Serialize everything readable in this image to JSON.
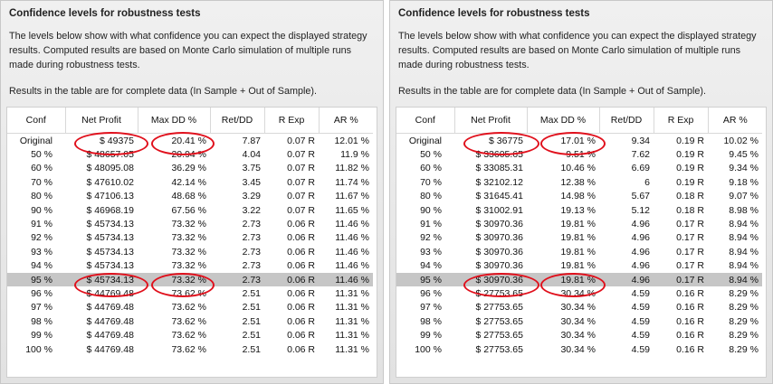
{
  "panels": [
    {
      "title": "Confidence levels for robustness tests",
      "description": "The levels below show with what confidence you can expect the displayed strategy results. Computed results are based on Monte Carlo simulation of multiple runs made during robustness tests.",
      "note": "Results in the table are for complete data (In Sample + Out of Sample).",
      "columns": [
        "Conf",
        "Net Profit",
        "Max DD %",
        "Ret/DD",
        "R Exp",
        "AR %"
      ],
      "highlight_row": "95 %",
      "rows": [
        [
          "Original",
          "$ 49375",
          "20.41 %",
          "7.87",
          "0.07 R",
          "12.01 %"
        ],
        [
          "50 %",
          "$ 48657.05",
          "20.94 %",
          "4.04",
          "0.07 R",
          "11.9 %"
        ],
        [
          "60 %",
          "$ 48095.08",
          "36.29 %",
          "3.75",
          "0.07 R",
          "11.82 %"
        ],
        [
          "70 %",
          "$ 47610.02",
          "42.14 %",
          "3.45",
          "0.07 R",
          "11.74 %"
        ],
        [
          "80 %",
          "$ 47106.13",
          "48.68 %",
          "3.29",
          "0.07 R",
          "11.67 %"
        ],
        [
          "90 %",
          "$ 46968.19",
          "67.56 %",
          "3.22",
          "0.07 R",
          "11.65 %"
        ],
        [
          "91 %",
          "$ 45734.13",
          "73.32 %",
          "2.73",
          "0.06 R",
          "11.46 %"
        ],
        [
          "92 %",
          "$ 45734.13",
          "73.32 %",
          "2.73",
          "0.06 R",
          "11.46 %"
        ],
        [
          "93 %",
          "$ 45734.13",
          "73.32 %",
          "2.73",
          "0.06 R",
          "11.46 %"
        ],
        [
          "94 %",
          "$ 45734.13",
          "73.32 %",
          "2.73",
          "0.06 R",
          "11.46 %"
        ],
        [
          "95 %",
          "$ 45734.13",
          "73.32 %",
          "2.73",
          "0.06 R",
          "11.46 %"
        ],
        [
          "96 %",
          "$ 44769.48",
          "73.62 %",
          "2.51",
          "0.06 R",
          "11.31 %"
        ],
        [
          "97 %",
          "$ 44769.48",
          "73.62 %",
          "2.51",
          "0.06 R",
          "11.31 %"
        ],
        [
          "98 %",
          "$ 44769.48",
          "73.62 %",
          "2.51",
          "0.06 R",
          "11.31 %"
        ],
        [
          "99 %",
          "$ 44769.48",
          "73.62 %",
          "2.51",
          "0.06 R",
          "11.31 %"
        ],
        [
          "100 %",
          "$ 44769.48",
          "73.62 %",
          "2.51",
          "0.06 R",
          "11.31 %"
        ]
      ]
    },
    {
      "title": "Confidence levels for robustness tests",
      "description": "The levels below show with what confidence you can expect the displayed strategy results. Computed results are based on Monte Carlo simulation of multiple runs made during robustness tests.",
      "note": "Results in the table are for complete data (In Sample + Out of Sample).",
      "columns": [
        "Conf",
        "Net Profit",
        "Max DD %",
        "Ret/DD",
        "R Exp",
        "AR %"
      ],
      "highlight_row": "95 %",
      "rows": [
        [
          "Original",
          "$ 36775",
          "17.01 %",
          "9.34",
          "0.19 R",
          "10.02 %"
        ],
        [
          "50 %",
          "$ 33605.65",
          "9.51 %",
          "7.62",
          "0.19 R",
          "9.45 %"
        ],
        [
          "60 %",
          "$ 33085.31",
          "10.46 %",
          "6.69",
          "0.19 R",
          "9.34 %"
        ],
        [
          "70 %",
          "$ 32102.12",
          "12.38 %",
          "6",
          "0.19 R",
          "9.18 %"
        ],
        [
          "80 %",
          "$ 31645.41",
          "14.98 %",
          "5.67",
          "0.18 R",
          "9.07 %"
        ],
        [
          "90 %",
          "$ 31002.91",
          "19.13 %",
          "5.12",
          "0.18 R",
          "8.98 %"
        ],
        [
          "91 %",
          "$ 30970.36",
          "19.81 %",
          "4.96",
          "0.17 R",
          "8.94 %"
        ],
        [
          "92 %",
          "$ 30970.36",
          "19.81 %",
          "4.96",
          "0.17 R",
          "8.94 %"
        ],
        [
          "93 %",
          "$ 30970.36",
          "19.81 %",
          "4.96",
          "0.17 R",
          "8.94 %"
        ],
        [
          "94 %",
          "$ 30970.36",
          "19.81 %",
          "4.96",
          "0.17 R",
          "8.94 %"
        ],
        [
          "95 %",
          "$ 30970.36",
          "19.81 %",
          "4.96",
          "0.17 R",
          "8.94 %"
        ],
        [
          "96 %",
          "$ 27753.65",
          "30.34 %",
          "4.59",
          "0.16 R",
          "8.29 %"
        ],
        [
          "97 %",
          "$ 27753.65",
          "30.34 %",
          "4.59",
          "0.16 R",
          "8.29 %"
        ],
        [
          "98 %",
          "$ 27753.65",
          "30.34 %",
          "4.59",
          "0.16 R",
          "8.29 %"
        ],
        [
          "99 %",
          "$ 27753.65",
          "30.34 %",
          "4.59",
          "0.16 R",
          "8.29 %"
        ],
        [
          "100 %",
          "$ 27753.65",
          "30.34 %",
          "4.59",
          "0.16 R",
          "8.29 %"
        ]
      ]
    }
  ],
  "colors": {
    "annotation": "#e0101c",
    "highlight_row": "#c6c6c6"
  }
}
